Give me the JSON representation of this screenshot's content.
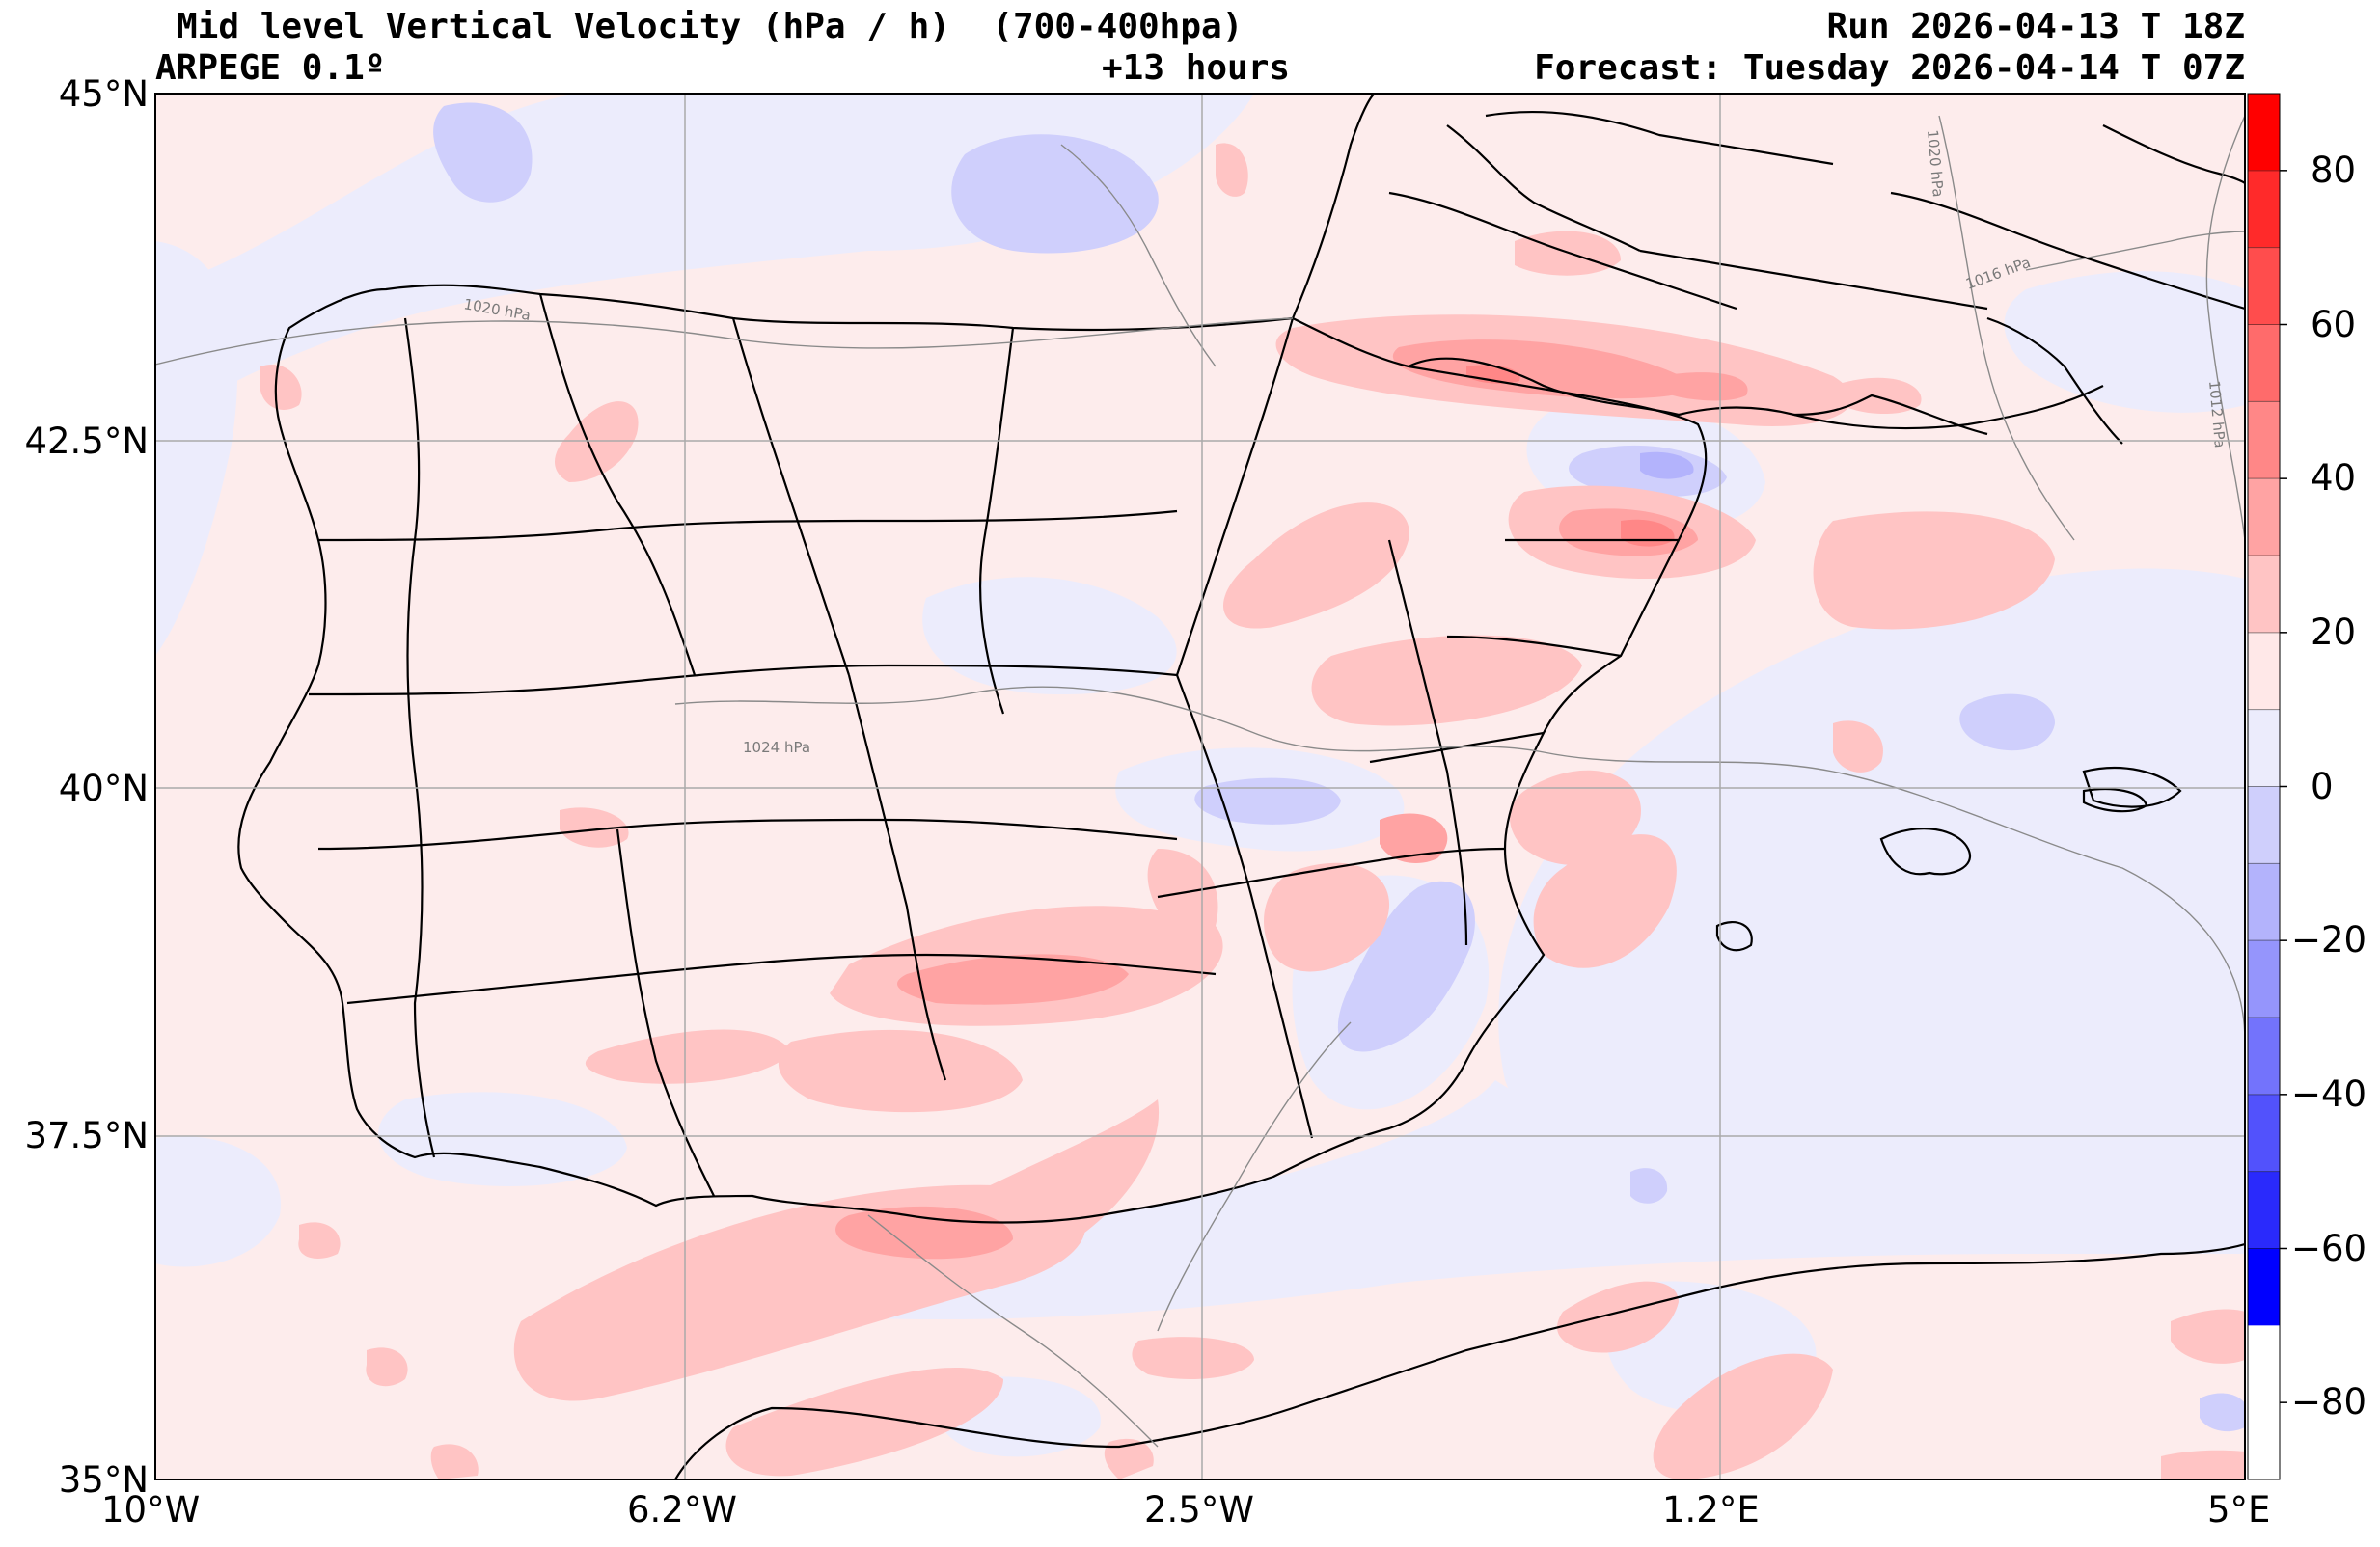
{
  "header": {
    "title": "Mid level Vertical Velocity (hPa / h)  (700-400hpa)",
    "model": "ARPEGE 0.1º",
    "lead": "+13 hours",
    "run": "Run 2026-04-13 T 18Z",
    "forecast": "Forecast: Tuesday 2026-04-14 T 07Z"
  },
  "map": {
    "lon_range": [
      -10,
      5
    ],
    "lat_range": [
      35,
      45
    ],
    "lat_ticks": [
      "45°N",
      "42.5°N",
      "40°N",
      "37.5°N",
      "35°N"
    ],
    "lon_ticks": [
      "10°W",
      "6.2°W",
      "2.5°W",
      "1.2°E",
      "5°E"
    ],
    "grid": true,
    "isobars": [
      "1020 hPa",
      "1016 hPa",
      "1012 hPa",
      "1020 hPa",
      "1024 hPa"
    ]
  },
  "colorbar": {
    "tick_labels": [
      "80",
      "60",
      "40",
      "20",
      "0",
      "−20",
      "−40",
      "−60",
      "−80"
    ],
    "range": [
      -90,
      90
    ],
    "levels": [
      90,
      80,
      70,
      60,
      50,
      40,
      30,
      20,
      10,
      0,
      -10,
      -20,
      -30,
      -40,
      -50,
      -60,
      -70,
      -80,
      -90
    ],
    "colors": [
      "#ff0000",
      "#ff2a2a",
      "#ff4d4d",
      "#ff6b6b",
      "#ff8787",
      "#ffa3a3",
      "#ffc4c4",
      "#ffe8e8",
      "#ececfc",
      "#cfcffc",
      "#b3b3fc",
      "#9595fc",
      "#7373fc",
      "#5252fc",
      "#2a2afc",
      "#0000ff"
    ],
    "base_positive": "#fdecec",
    "base_negative": "#ededfd"
  }
}
